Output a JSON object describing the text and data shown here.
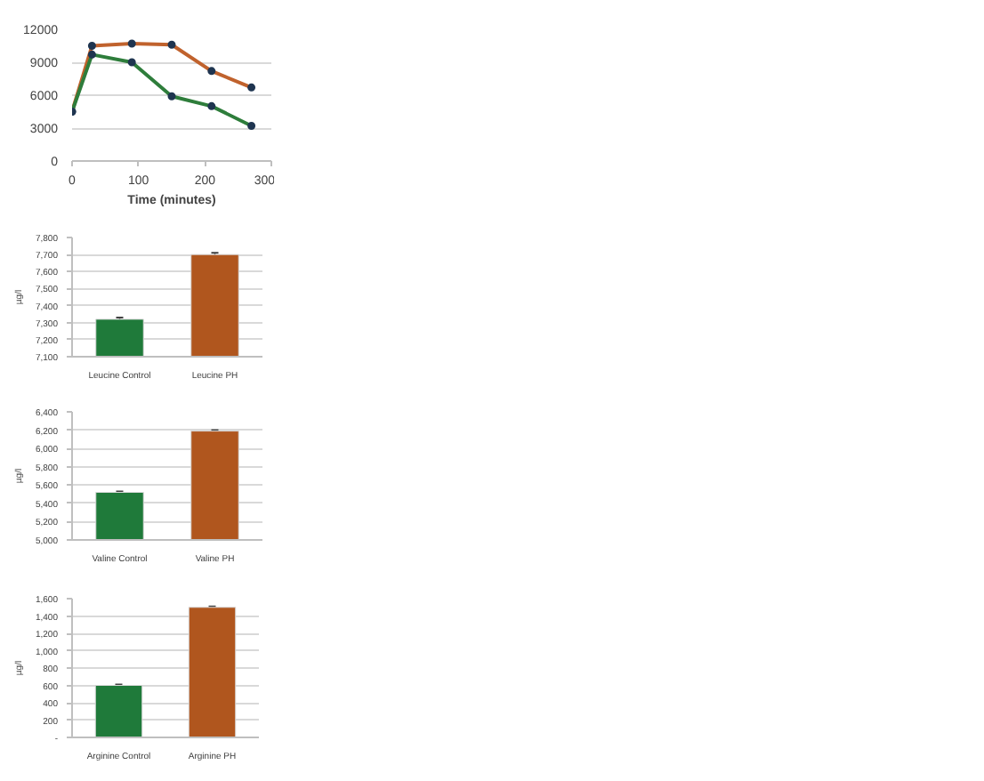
{
  "chart_data": [
    {
      "type": "line",
      "x": [
        0,
        30,
        90,
        150,
        210,
        270
      ],
      "series": [
        {
          "color": "#c0622d",
          "values": [
            4500,
            10500,
            10700,
            10600,
            8200,
            6700
          ]
        },
        {
          "color": "#2e7d3b",
          "values": [
            4500,
            9700,
            9000,
            5900,
            5000,
            3200
          ]
        }
      ],
      "xlim": [
        0,
        300
      ],
      "xticks": [
        0,
        100,
        200,
        300
      ],
      "ylim": [
        0,
        12000
      ],
      "yticks": [
        0,
        3000,
        6000,
        9000,
        12000
      ],
      "xlabel": "Time (minutes)",
      "grid": "y",
      "marker": "circle",
      "line_style": "solid"
    },
    {
      "type": "bar",
      "categories": [
        "Leucine Control",
        "Leucine PH"
      ],
      "values": [
        7320,
        7700
      ],
      "colors": [
        "#1f7a3a",
        "#b0561e"
      ],
      "errors": [
        10,
        10
      ],
      "ylim": [
        7100,
        7800
      ],
      "yticks": [
        {
          "value": 7100,
          "label": "7,100"
        },
        {
          "value": 7200,
          "label": "7,200"
        },
        {
          "value": 7300,
          "label": "7,300"
        },
        {
          "value": 7400,
          "label": "7,400"
        },
        {
          "value": 7500,
          "label": "7,500"
        },
        {
          "value": 7600,
          "label": "7,600"
        },
        {
          "value": 7700,
          "label": "7,700"
        },
        {
          "value": 7800,
          "label": "7,800"
        }
      ],
      "ylabel": "µg/l",
      "grid": "y"
    },
    {
      "type": "bar",
      "categories": [
        "Valine Control",
        "Valine PH"
      ],
      "values": [
        5520,
        6190
      ],
      "colors": [
        "#1f7a3a",
        "#b0561e"
      ],
      "errors": [
        10,
        10
      ],
      "ylim": [
        5000,
        6400
      ],
      "yticks": [
        {
          "value": 5000,
          "label": "5,000"
        },
        {
          "value": 5200,
          "label": "5,200"
        },
        {
          "value": 5400,
          "label": "5,400"
        },
        {
          "value": 5600,
          "label": "5,600"
        },
        {
          "value": 5800,
          "label": "5,800"
        },
        {
          "value": 6000,
          "label": "6,000"
        },
        {
          "value": 6200,
          "label": "6,200"
        },
        {
          "value": 6400,
          "label": "6,400"
        }
      ],
      "ylabel": "µg/l",
      "grid": "y"
    },
    {
      "type": "bar",
      "categories": [
        "Arginine Control",
        "Arginine PH"
      ],
      "values": [
        600,
        1500
      ],
      "colors": [
        "#1f7a3a",
        "#b0561e"
      ],
      "errors": [
        10,
        10
      ],
      "ylim": [
        0,
        1600
      ],
      "yticks": [
        {
          "value": 0,
          "label": "-"
        },
        200,
        400,
        600,
        800,
        {
          "value": 1000,
          "label": "1,000"
        },
        {
          "value": 1200,
          "label": "1,200"
        },
        {
          "value": 1400,
          "label": "1,400"
        },
        {
          "value": 1600,
          "label": "1,600"
        }
      ],
      "ylabel": "µg/l",
      "grid": "y"
    }
  ]
}
